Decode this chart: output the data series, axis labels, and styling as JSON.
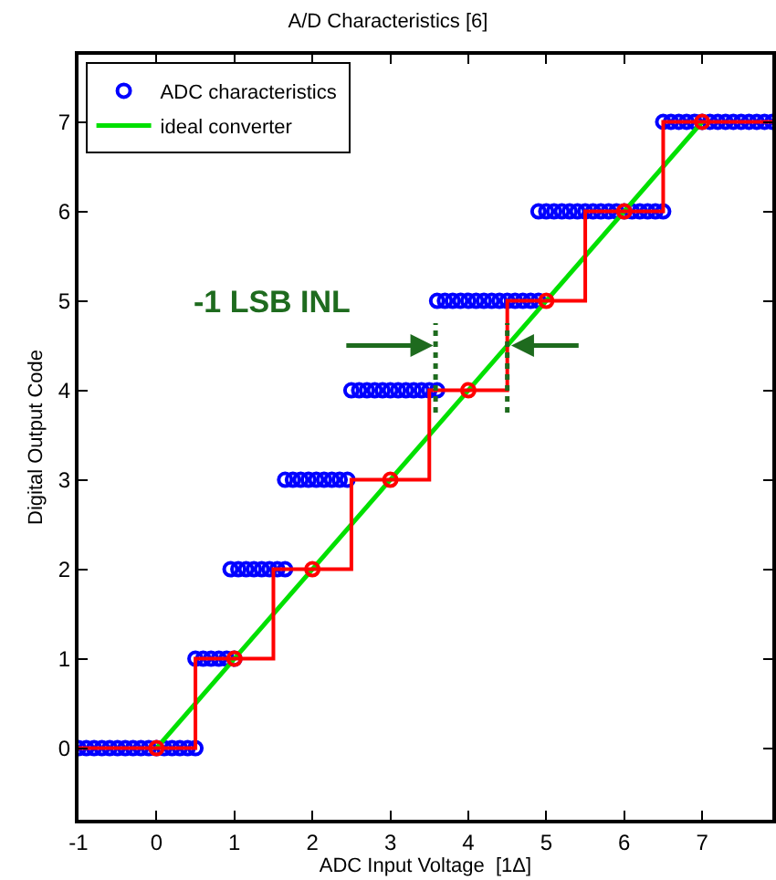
{
  "chart_data": {
    "type": "scatter",
    "title": "A/D Characteristics [6]",
    "xlabel": "ADC Input Voltage  [1Δ]",
    "ylabel": "Digital Output Code",
    "xlim": [
      -1,
      7.9
    ],
    "xticks": [
      -1,
      0,
      1,
      2,
      3,
      4,
      5,
      6,
      7
    ],
    "ylim": [
      -0.8,
      7.75
    ],
    "yticks": [
      0,
      1,
      2,
      3,
      4,
      5,
      6,
      7
    ],
    "grid": false,
    "legend": "top left",
    "annotations": [
      {
        "text": "-1 LSB INL",
        "x": 3.58,
        "y": 4.5
      }
    ],
    "series": [
      {
        "name": "ADC characteristics",
        "marker": "circle",
        "color": "#0000ff",
        "x": [
          -1.0,
          -0.9,
          -0.8,
          -0.7,
          -0.6,
          -0.5,
          -0.4,
          -0.3,
          -0.2,
          -0.1,
          0.0,
          0.1,
          0.2,
          0.3,
          0.4,
          0.5,
          0.5,
          0.6,
          0.7,
          0.8,
          0.9,
          1.0,
          0.95,
          1.05,
          1.15,
          1.25,
          1.35,
          1.45,
          1.55,
          1.65,
          1.65,
          1.75,
          1.85,
          1.95,
          2.05,
          2.15,
          2.25,
          2.35,
          2.45,
          2.5,
          2.6,
          2.7,
          2.8,
          2.9,
          3.0,
          3.1,
          3.2,
          3.3,
          3.4,
          3.5,
          3.6,
          3.6,
          3.7,
          3.8,
          3.9,
          4.0,
          4.1,
          4.2,
          4.3,
          4.4,
          4.5,
          4.6,
          4.7,
          4.8,
          4.9,
          4.9,
          5.0,
          5.1,
          5.2,
          5.3,
          5.4,
          5.5,
          5.6,
          5.7,
          5.8,
          5.9,
          6.0,
          6.1,
          6.2,
          6.3,
          6.4,
          6.5,
          6.5,
          6.6,
          6.7,
          6.8,
          6.9,
          7.0,
          7.1,
          7.2,
          7.3,
          7.4,
          7.5,
          7.6,
          7.7,
          7.8,
          7.9
        ],
        "values": [
          0,
          0,
          0,
          0,
          0,
          0,
          0,
          0,
          0,
          0,
          0,
          0,
          0,
          0,
          0,
          0,
          1,
          1,
          1,
          1,
          1,
          1,
          2,
          2,
          2,
          2,
          2,
          2,
          2,
          2,
          3,
          3,
          3,
          3,
          3,
          3,
          3,
          3,
          3,
          4,
          4,
          4,
          4,
          4,
          4,
          4,
          4,
          4,
          4,
          4,
          4,
          5,
          5,
          5,
          5,
          5,
          5,
          5,
          5,
          5,
          5,
          5,
          5,
          5,
          5,
          6,
          6,
          6,
          6,
          6,
          6,
          6,
          6,
          6,
          6,
          6,
          6,
          6,
          6,
          6,
          6,
          6,
          7,
          7,
          7,
          7,
          7,
          7,
          7,
          7,
          7,
          7,
          7,
          7,
          7,
          7,
          7
        ]
      },
      {
        "name": "ideal converter",
        "type": "line",
        "marker": "none",
        "line_style": "solid",
        "color": "#00e000",
        "x": [
          0,
          7
        ],
        "values": [
          0,
          7
        ]
      },
      {
        "type": "step",
        "marker": "none",
        "line_style": "solid",
        "color": "#ff0000",
        "x": [
          -1,
          0.5,
          1.5,
          2.5,
          3.5,
          4.5,
          5.5,
          6.5,
          7.9
        ],
        "values": [
          0,
          1,
          2,
          3,
          4,
          5,
          6,
          7,
          7
        ]
      },
      {
        "type": "scatter",
        "marker": "circle",
        "color": "#ff0000",
        "x": [
          0,
          1,
          2,
          3,
          4,
          5,
          6,
          7
        ],
        "values": [
          0,
          1,
          2,
          3,
          4,
          5,
          6,
          7
        ]
      },
      {
        "type": "line",
        "marker": "none",
        "line_style": "dotted",
        "color": "#1e6b1e",
        "x": [
          3.58,
          3.58
        ],
        "values": [
          3.75,
          4.75
        ]
      },
      {
        "type": "line",
        "marker": "none",
        "line_style": "dotted",
        "color": "#1e6b1e",
        "x": [
          4.5,
          4.5
        ],
        "values": [
          3.75,
          4.75
        ]
      }
    ]
  }
}
